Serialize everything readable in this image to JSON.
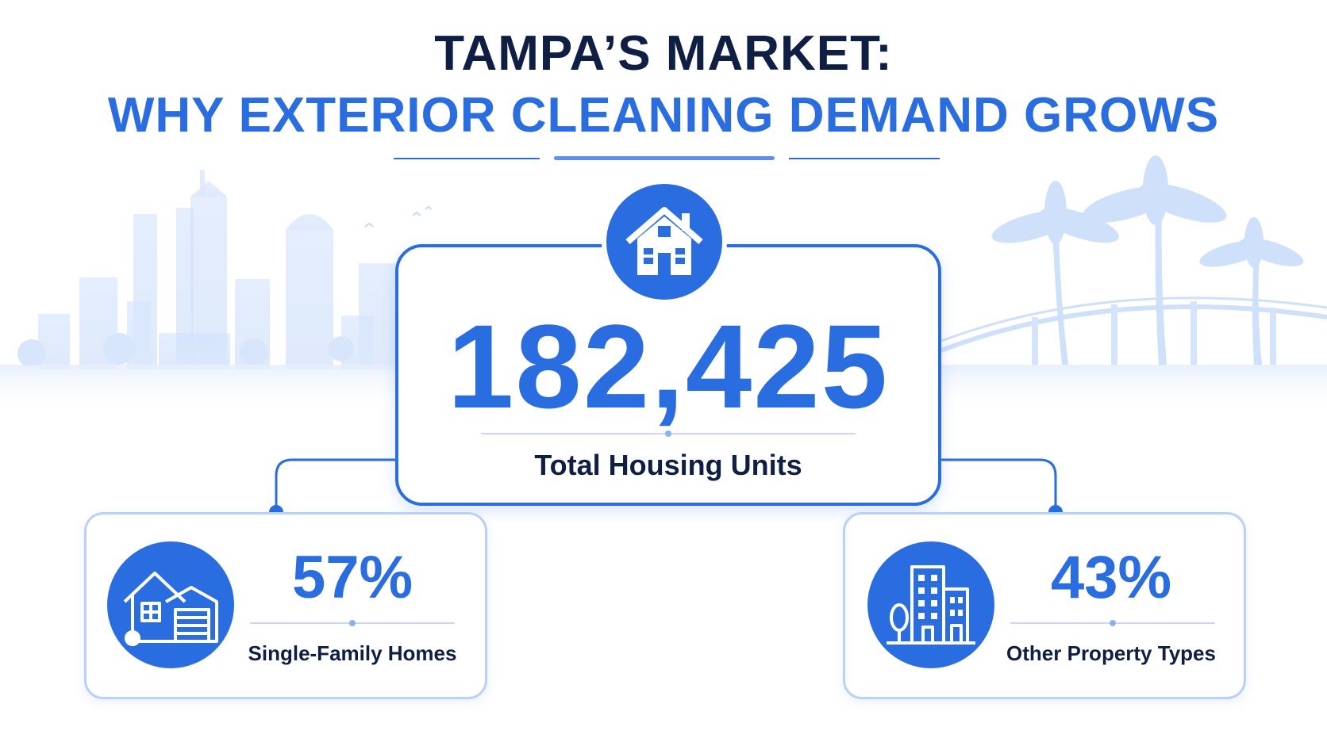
{
  "header": {
    "title_line1": "TAMPA’S MARKET:",
    "title_line2": "WHY EXTERIOR CLEANING DEMAND GROWS"
  },
  "main_stat": {
    "value": "182,425",
    "label": "Total Housing Units",
    "icon": "house-icon"
  },
  "left_stat": {
    "value": "57%",
    "label": "Single-Family Homes",
    "icon": "single-family-house-icon"
  },
  "right_stat": {
    "value": "43%",
    "label": "Other Property Types",
    "icon": "apartment-building-icon"
  },
  "colors": {
    "navy": "#0f1f44",
    "accent": "#2a6de0",
    "light_accent": "#b9d0f7"
  }
}
